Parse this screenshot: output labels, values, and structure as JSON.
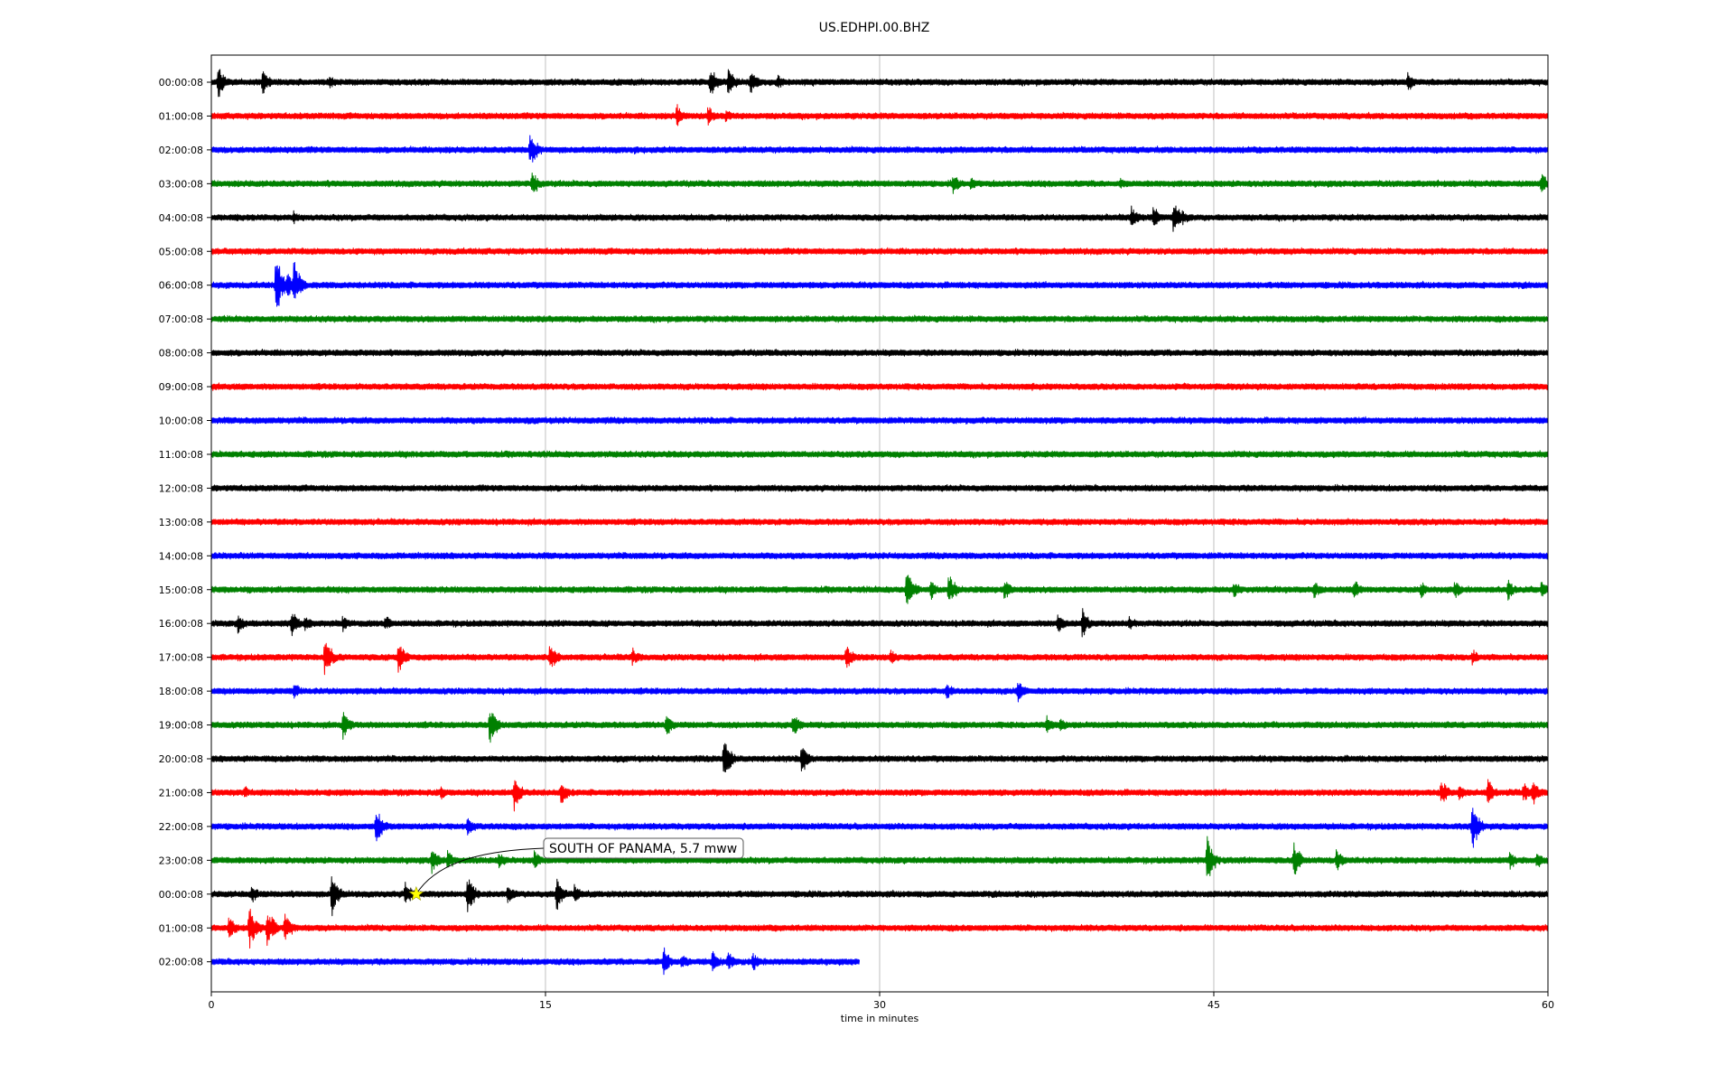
{
  "chart_data": {
    "type": "line",
    "title": "US.EDHPI.00.BHZ",
    "xlabel": "time in minutes",
    "ylabel": "",
    "xlim": [
      0,
      60
    ],
    "x_ticks": [
      "0",
      "15",
      "30",
      "45",
      "60"
    ],
    "x_tick_values": [
      0,
      15,
      30,
      45,
      60
    ],
    "grid": "vertical",
    "trace_colors": [
      "#000000",
      "#ff0000",
      "#0000ff",
      "#008000"
    ],
    "rows": [
      {
        "label": "00:00:08",
        "end_minute": 60,
        "events": [
          [
            0.3,
            20
          ],
          [
            2.3,
            16
          ],
          [
            5.3,
            9
          ],
          [
            22.4,
            18
          ],
          [
            23.2,
            16
          ],
          [
            24.2,
            14
          ],
          [
            25.4,
            10
          ],
          [
            53.7,
            12
          ]
        ]
      },
      {
        "label": "01:00:08",
        "end_minute": 60,
        "events": [
          [
            20.9,
            14
          ],
          [
            22.3,
            12
          ],
          [
            23.1,
            8
          ]
        ]
      },
      {
        "label": "02:00:08",
        "end_minute": 60,
        "events": [
          [
            14.3,
            22
          ],
          [
            19.0,
            5
          ]
        ]
      },
      {
        "label": "03:00:08",
        "end_minute": 60,
        "events": [
          [
            14.4,
            16
          ],
          [
            33.3,
            12
          ],
          [
            34.1,
            8
          ],
          [
            40.8,
            8
          ],
          [
            59.7,
            14
          ]
        ]
      },
      {
        "label": "04:00:08",
        "end_minute": 60,
        "events": [
          [
            3.7,
            8
          ],
          [
            41.3,
            14
          ],
          [
            42.3,
            14
          ],
          [
            43.2,
            22
          ],
          [
            43.6,
            10
          ]
        ]
      },
      {
        "label": "05:00:08",
        "end_minute": 60,
        "events": [
          [
            42.5,
            4
          ]
        ]
      },
      {
        "label": "06:00:08",
        "end_minute": 60,
        "events": [
          [
            2.9,
            34
          ],
          [
            3.4,
            18
          ],
          [
            3.7,
            26
          ]
        ]
      },
      {
        "label": "07:00:08",
        "end_minute": 60,
        "events": []
      },
      {
        "label": "08:00:08",
        "end_minute": 60,
        "events": []
      },
      {
        "label": "09:00:08",
        "end_minute": 60,
        "events": [
          [
            36.8,
            5
          ]
        ]
      },
      {
        "label": "10:00:08",
        "end_minute": 60,
        "events": []
      },
      {
        "label": "11:00:08",
        "end_minute": 60,
        "events": []
      },
      {
        "label": "12:00:08",
        "end_minute": 60,
        "events": []
      },
      {
        "label": "13:00:08",
        "end_minute": 60,
        "events": [
          [
            11.1,
            5
          ]
        ]
      },
      {
        "label": "14:00:08",
        "end_minute": 60,
        "events": []
      },
      {
        "label": "15:00:08",
        "end_minute": 60,
        "events": [
          [
            31.2,
            26
          ],
          [
            32.3,
            12
          ],
          [
            33.1,
            20
          ],
          [
            35.6,
            12
          ],
          [
            45.9,
            10
          ],
          [
            49.5,
            10
          ],
          [
            51.3,
            12
          ],
          [
            54.3,
            10
          ],
          [
            55.8,
            12
          ],
          [
            58.2,
            12
          ],
          [
            59.7,
            10
          ]
        ]
      },
      {
        "label": "16:00:08",
        "end_minute": 60,
        "events": [
          [
            1.2,
            12
          ],
          [
            3.6,
            16
          ],
          [
            4.2,
            10
          ],
          [
            5.9,
            10
          ],
          [
            7.8,
            10
          ],
          [
            38.0,
            12
          ],
          [
            39.1,
            16
          ],
          [
            41.2,
            9
          ]
        ]
      },
      {
        "label": "17:00:08",
        "end_minute": 60,
        "events": [
          [
            5.1,
            22
          ],
          [
            8.4,
            20
          ],
          [
            15.2,
            18
          ],
          [
            18.9,
            12
          ],
          [
            28.5,
            16
          ],
          [
            30.5,
            12
          ],
          [
            56.6,
            10
          ]
        ]
      },
      {
        "label": "18:00:08",
        "end_minute": 60,
        "events": [
          [
            3.7,
            12
          ],
          [
            33.0,
            10
          ],
          [
            36.2,
            14
          ]
        ]
      },
      {
        "label": "19:00:08",
        "end_minute": 60,
        "events": [
          [
            5.9,
            16
          ],
          [
            12.5,
            22
          ],
          [
            20.4,
            14
          ],
          [
            26.1,
            16
          ],
          [
            37.5,
            12
          ],
          [
            38.1,
            10
          ]
        ]
      },
      {
        "label": "20:00:08",
        "end_minute": 60,
        "events": [
          [
            23.0,
            24
          ],
          [
            26.5,
            18
          ]
        ]
      },
      {
        "label": "21:00:08",
        "end_minute": 60,
        "events": [
          [
            1.5,
            8
          ],
          [
            10.3,
            8
          ],
          [
            13.6,
            20
          ],
          [
            15.7,
            14
          ],
          [
            55.2,
            16
          ],
          [
            56.0,
            10
          ],
          [
            57.3,
            16
          ],
          [
            58.9,
            12
          ],
          [
            59.3,
            16
          ]
        ]
      },
      {
        "label": "22:00:08",
        "end_minute": 60,
        "events": [
          [
            7.4,
            22
          ],
          [
            11.5,
            12
          ],
          [
            56.6,
            26
          ]
        ]
      },
      {
        "label": "23:00:08",
        "end_minute": 60,
        "events": [
          [
            9.9,
            16
          ],
          [
            10.6,
            12
          ],
          [
            12.9,
            10
          ],
          [
            14.5,
            12
          ],
          [
            44.7,
            26
          ],
          [
            48.6,
            20
          ],
          [
            50.5,
            14
          ],
          [
            58.3,
            12
          ],
          [
            59.5,
            10
          ]
        ]
      },
      {
        "label": "00:00:08",
        "end_minute": 60,
        "events": [
          [
            1.8,
            12
          ],
          [
            5.4,
            24
          ],
          [
            8.7,
            14
          ],
          [
            11.5,
            22
          ],
          [
            13.3,
            12
          ],
          [
            15.5,
            20
          ],
          [
            16.3,
            12
          ]
        ]
      },
      {
        "label": "01:00:08",
        "end_minute": 60,
        "events": [
          [
            0.8,
            16
          ],
          [
            1.7,
            24
          ],
          [
            2.5,
            24
          ],
          [
            3.3,
            18
          ]
        ]
      },
      {
        "label": "02:00:08",
        "end_minute": 29.1,
        "events": [
          [
            20.3,
            16
          ],
          [
            21.1,
            10
          ],
          [
            22.5,
            14
          ],
          [
            23.2,
            12
          ],
          [
            24.3,
            12
          ]
        ]
      }
    ],
    "annotation": {
      "text": "SOUTH OF PANAMA, 5.7 mww",
      "row_index": 24,
      "marker_minute": 9.2,
      "marker": "star",
      "marker_color": "#ffff00"
    }
  }
}
